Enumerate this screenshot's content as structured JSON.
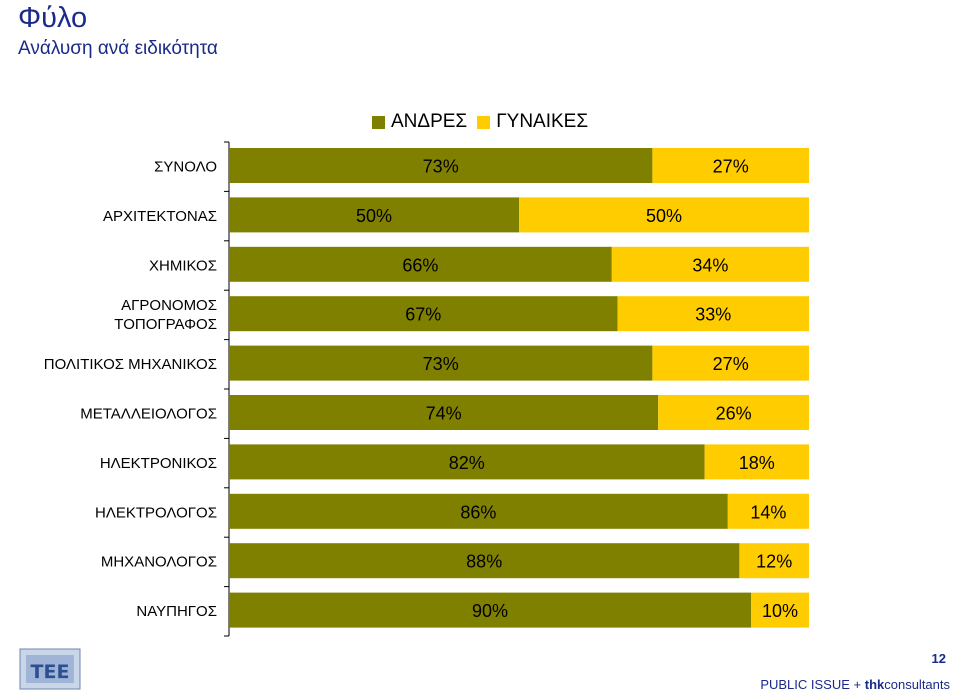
{
  "header": {
    "title": "Φύλο",
    "subtitle": "Ανάλυση ανά ειδικότητα"
  },
  "chart_data": {
    "type": "bar",
    "orientation": "horizontal",
    "stacked": true,
    "percent_stacked": true,
    "categories": [
      "ΣΥΝΟΛΟ",
      "ΑΡΧΙΤΕΚΤΟΝΑΣ",
      "ΧΗΜΙΚΟΣ",
      "ΑΓΡΟΝΟΜΟΣ ΤΟΠΟΓΡΑΦΟΣ",
      "ΠΟΛΙΤΙΚΟΣ ΜΗΧΑΝΙΚΟΣ",
      "ΜΕΤΑΛΛΕΙΟΛΟΓΟΣ",
      "ΗΛΕΚΤΡΟΝΙΚΟΣ",
      "ΗΛΕΚΤΡΟΛΟΓΟΣ",
      "ΜΗΧΑΝΟΛΟΓΟΣ",
      "ΝΑΥΠΗΓΟΣ"
    ],
    "category_lines": [
      [
        "ΣΥΝΟΛΟ"
      ],
      [
        "ΑΡΧΙΤΕΚΤΟΝΑΣ"
      ],
      [
        "ΧΗΜΙΚΟΣ"
      ],
      [
        "ΑΓΡΟΝΟΜΟΣ",
        "ΤΟΠΟΓΡΑΦΟΣ"
      ],
      [
        "ΠΟΛΙΤΙΚΟΣ ΜΗΧΑΝΙΚΟΣ"
      ],
      [
        "ΜΕΤΑΛΛΕΙΟΛΟΓΟΣ"
      ],
      [
        "ΗΛΕΚΤΡΟΝΙΚΟΣ"
      ],
      [
        "ΗΛΕΚΤΡΟΛΟΓΟΣ"
      ],
      [
        "ΜΗΧΑΝΟΛΟΓΟΣ"
      ],
      [
        "ΝΑΥΠΗΓΟΣ"
      ]
    ],
    "series": [
      {
        "name": "ΑΝΔΡΕΣ",
        "color": "#808000",
        "values": [
          73,
          50,
          66,
          67,
          73,
          74,
          82,
          86,
          88,
          90
        ]
      },
      {
        "name": "ΓΥΝΑΙΚΕΣ",
        "color": "#ffcc00",
        "values": [
          27,
          50,
          34,
          33,
          27,
          26,
          18,
          14,
          12,
          10
        ]
      }
    ],
    "value_suffix": "%",
    "xlim": [
      0,
      100
    ],
    "legend_position": "top",
    "grid": false
  },
  "footer": {
    "page_number": "12",
    "brand_prefix": "PUBLIC ISSUE + ",
    "brand_bold": "thk",
    "brand_suffix": "consultants"
  },
  "logo": {
    "text": "ΤΕΕ"
  }
}
